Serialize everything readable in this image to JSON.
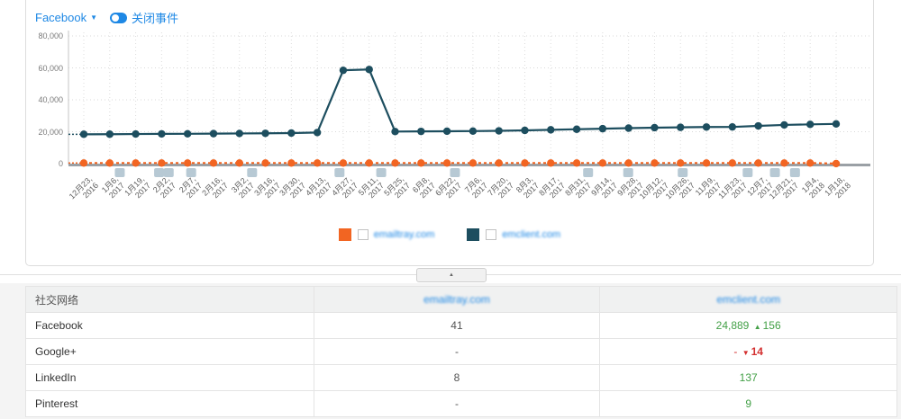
{
  "controls": {
    "network_selector": "Facebook",
    "events_toggle_label": "关闭事件"
  },
  "chart_data": {
    "type": "line",
    "title": "",
    "xlabel": "",
    "ylabel": "",
    "ylim": [
      0,
      80000
    ],
    "grid": true,
    "legend_position": "bottom-center",
    "ytick_labels": [
      "0",
      "20,000",
      "40,000",
      "60,000",
      "80,000"
    ],
    "ytick_values": [
      0,
      20000,
      40000,
      60000,
      80000
    ],
    "x_labels": [
      "12月23, 2016",
      "1月6, 2017",
      "1月19, 2017",
      "2月2, 2017",
      "2月7, 2017",
      "2月16, 2017",
      "3月2, 2017",
      "3月16, 2017",
      "3月30, 2017",
      "4月13, 2017",
      "4月27, 2017",
      "5月11, 2017",
      "5月25, 2017",
      "6月8, 2017",
      "6月22, 2017",
      "7月6, 2017",
      "7月20, 2017",
      "8月3, 2017",
      "8月17, 2017",
      "8月31, 2017",
      "9月14, 2017",
      "9月28, 2017",
      "10月12, 2017",
      "10月26, 2017",
      "11月9, 2017",
      "11月23, 2017",
      "12月7, 2017",
      "12月21, 2017",
      "1月4, 2018",
      "1月18, 2018"
    ],
    "series": [
      {
        "name": "emailtray.com",
        "color": "#f26522",
        "line_style": "dashed",
        "values": [
          400,
          400,
          400,
          400,
          400,
          400,
          400,
          400,
          400,
          400,
          400,
          400,
          400,
          400,
          400,
          400,
          400,
          400,
          400,
          400,
          400,
          400,
          400,
          400,
          400,
          400,
          400,
          400,
          400,
          41
        ]
      },
      {
        "name": "emclient.com",
        "color": "#1d4e5f",
        "line_style": "solid",
        "values": [
          18400,
          18450,
          18550,
          18650,
          18700,
          18800,
          18900,
          19000,
          19150,
          19500,
          58500,
          59000,
          20100,
          20200,
          20300,
          20400,
          20550,
          20850,
          21200,
          21550,
          21900,
          22250,
          22550,
          22750,
          22950,
          23000,
          23650,
          24250,
          24600,
          24889
        ]
      }
    ],
    "event_markers_pct": [
      6.4,
      11.3,
      12.5,
      15.3,
      22.9,
      33.8,
      39.0,
      48.2,
      64.8,
      69.8,
      76.6,
      84.7,
      88.1,
      90.6
    ]
  },
  "collapse_button": {
    "icon": "caret-up",
    "glyph": "▲"
  },
  "table": {
    "columns": [
      {
        "label": "社交网络",
        "link": false,
        "blurred": false
      },
      {
        "label": "emailtray.com",
        "link": true,
        "blurred": true
      },
      {
        "label": "emclient.com",
        "link": true,
        "blurred": true
      }
    ],
    "rows": [
      {
        "network": "Facebook",
        "col2": "41",
        "col3": {
          "value": "24,889",
          "change": "156",
          "direction": "up",
          "color": "green"
        }
      },
      {
        "network": "Google+",
        "col2": "-",
        "col3": {
          "value": "-",
          "change": "14",
          "direction": "down",
          "color": "red"
        }
      },
      {
        "network": "LinkedIn",
        "col2": "8",
        "col3": {
          "value": "137",
          "change": "",
          "direction": "",
          "color": "green"
        }
      },
      {
        "network": "Pinterest",
        "col2": "-",
        "col3": {
          "value": "9",
          "change": "",
          "direction": "",
          "color": "green"
        }
      }
    ]
  },
  "colors": {
    "accent_blue": "#1e88e5",
    "series_orange": "#f26522",
    "series_teal": "#1d4e5f",
    "positive_green": "#43a047",
    "negative_red": "#d32f2f",
    "event_marker": "#b7c9d4"
  }
}
